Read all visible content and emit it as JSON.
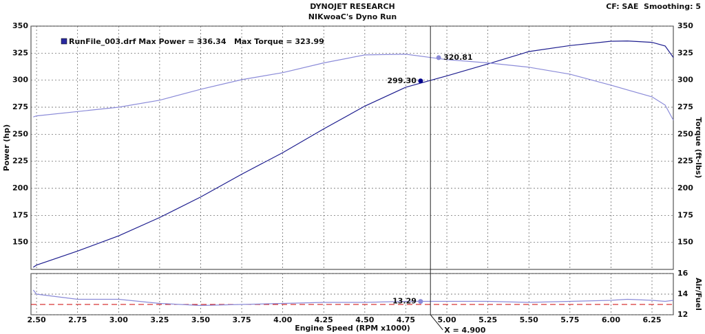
{
  "header": {
    "title": "DYNOJET RESEARCH",
    "subtitle": "NIKwoaC's Dyno Run",
    "settings": "CF: SAE  Smoothing: 5"
  },
  "chart_data": [
    {
      "type": "line",
      "y_label": "Power (hp)",
      "y2_label": "Torque (ft-lbs)",
      "legend_text": [
        "RunFile_003.drf Max Power = 336.34",
        "Max Torque = 323.99"
      ],
      "legend_color": "#2a2aa0",
      "x": [
        2.48,
        2.5,
        2.75,
        3,
        3.25,
        3.5,
        3.75,
        4,
        4.25,
        4.5,
        4.75,
        5,
        5.25,
        5.5,
        5.75,
        6,
        6.1,
        6.25,
        6.33,
        6.38
      ],
      "series": [
        {
          "color": "#1c1c8e",
          "values": [
            127,
            129,
            142,
            156,
            173,
            192,
            213,
            233,
            255,
            276,
            293.5,
            304,
            315,
            326.5,
            332,
            336,
            336.3,
            335,
            331.6,
            321
          ]
        },
        {
          "color": "#8a8ad8",
          "axis": "y2",
          "values": [
            266,
            267,
            271,
            275,
            281.5,
            291.6,
            300.5,
            307,
            316,
            323.4,
            324,
            319,
            316,
            312,
            305.6,
            295.4,
            291,
            284.6,
            277,
            263
          ]
        }
      ],
      "markers": [
        {
          "x": 4.84,
          "y": {
            "value": 299.3,
            "label": "299.30"
          },
          "color": "#00008b"
        },
        {
          "x": 4.95,
          "y": {
            "value": 320.81,
            "label": "320.81"
          },
          "color": "#8a8ad8",
          "axis": "y2"
        }
      ],
      "cursor": {
        "value": 4.9,
        "label": "X = 4.900"
      },
      "xlim": [
        2.466,
        6.38
      ],
      "xticks": [
        {
          "value": 2.5,
          "label": "2.50"
        },
        {
          "value": 2.75,
          "label": "2.75"
        },
        {
          "value": 3,
          "label": "3.00"
        },
        {
          "value": 3.25,
          "label": "3.25"
        },
        {
          "value": 3.5,
          "label": "3.50"
        },
        {
          "value": 3.75,
          "label": "3.75"
        },
        {
          "value": 4,
          "label": "4.00"
        },
        {
          "value": 4.25,
          "label": "4.25"
        },
        {
          "value": 4.5,
          "label": "4.50"
        },
        {
          "value": 4.75,
          "label": "4.75"
        },
        {
          "value": 5,
          "label": "5.00"
        },
        {
          "value": 5.25,
          "label": "5.25"
        },
        {
          "value": 5.5,
          "label": "5.50"
        },
        {
          "value": 5.75,
          "label": "5.75"
        },
        {
          "value": 6,
          "label": "6.00"
        },
        {
          "value": 6.25,
          "label": "6.25"
        }
      ],
      "x_label": "Engine Speed (RPM x1000)",
      "ylim": [
        125,
        350
      ],
      "yticks": [
        150,
        175,
        200,
        225,
        250,
        275,
        300,
        325,
        350
      ],
      "y2lim": [
        125,
        350
      ],
      "y2ticks": [
        150,
        175,
        200,
        225,
        250,
        275,
        300,
        325,
        350
      ],
      "grid": true
    },
    {
      "type": "line",
      "y2_label": "Air/Fuel",
      "x": [
        2.48,
        2.5,
        2.75,
        3,
        3.25,
        3.5,
        3.75,
        4,
        4.25,
        4.5,
        4.75,
        5,
        5.25,
        5.5,
        5.75,
        6,
        6.1,
        6.25,
        6.33,
        6.38
      ],
      "series": [
        {
          "color": "#8a8ad8",
          "axis": "y2",
          "values": [
            14.4,
            14.0,
            13.5,
            13.5,
            13.1,
            12.9,
            13.0,
            13.1,
            13.2,
            13.2,
            13.3,
            13.3,
            13.3,
            13.2,
            13.3,
            13.4,
            13.5,
            13.4,
            13.3,
            13.4
          ]
        }
      ],
      "markers": [
        {
          "x": 4.84,
          "y": {
            "value": 13.29,
            "label": "13.29"
          },
          "color": "#8a8ad8",
          "axis": "y2"
        }
      ],
      "ref_line": {
        "value": 13,
        "color": "#cc0000"
      },
      "xlim": [
        2.466,
        6.38
      ],
      "y2lim": [
        12,
        16
      ],
      "y2ticks": [
        12,
        14,
        16
      ],
      "grid": true
    }
  ]
}
